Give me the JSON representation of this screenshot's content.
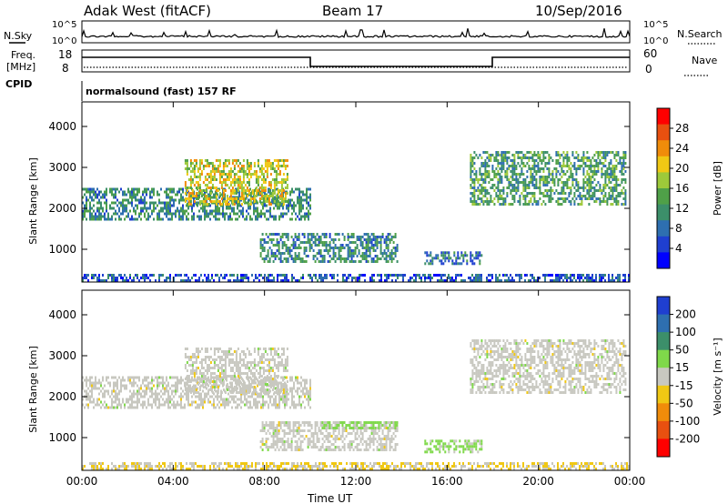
{
  "header": {
    "station": "Adak West (fitACF)",
    "beam": "Beam 17",
    "date": "10/Sep/2016"
  },
  "top_panels": {
    "nsky_label": "N.Sky",
    "nsky_ticks": [
      "10^5",
      "10^0"
    ],
    "nsearch_label": "N.Search",
    "nsearch_ticks": [
      "10^5",
      "10^0"
    ],
    "freq_label_1": "Freq.",
    "freq_label_2": "[MHz]",
    "freq_ticks": [
      "18",
      "8"
    ],
    "nave_label": "Nave",
    "nave_ticks": [
      "60",
      "0"
    ],
    "cpid_label": "CPID",
    "cpid_text": "normalsound (fast) 157 RF"
  },
  "colors": {
    "power_scale": [
      "#0000ff",
      "#1f3fd0",
      "#2e6fb0",
      "#3c8f6a",
      "#4fa048",
      "#9dc93a",
      "#f0c814",
      "#f08c0a",
      "#e85010",
      "#ff0000"
    ],
    "velocity_scale": [
      "#1f3fd0",
      "#2e6fb0",
      "#3c8f6a",
      "#7fd94a",
      "#c8c8c0",
      "#f0c814",
      "#f08c0a",
      "#e85010",
      "#ff0000"
    ]
  },
  "chart_data": [
    {
      "type": "heatmap",
      "title": "Power",
      "xlabel": "",
      "ylabel": "Slant Range [km]",
      "x_ticks": [
        "00:00",
        "04:00",
        "08:00",
        "12:00",
        "16:00",
        "20:00",
        "00:00"
      ],
      "xlim_hours": [
        0,
        24
      ],
      "y_ticks": [
        "1000",
        "2000",
        "3000",
        "4000"
      ],
      "ylim": [
        200,
        4600
      ],
      "colorbar_label": "Power [dB]",
      "colorbar_ticks": [
        "4",
        "8",
        "12",
        "16",
        "20",
        "24",
        "28"
      ],
      "clim": [
        0,
        30
      ],
      "regions": [
        {
          "x": [
            0.0,
            10.0
          ],
          "y": [
            1700,
            2500
          ],
          "value": 10
        },
        {
          "x": [
            4.5,
            9.0
          ],
          "y": [
            2100,
            3200
          ],
          "value": 18
        },
        {
          "x": [
            7.8,
            13.8
          ],
          "y": [
            700,
            1400
          ],
          "value": 10
        },
        {
          "x": [
            15.0,
            17.5
          ],
          "y": [
            650,
            950
          ],
          "value": 8
        },
        {
          "x": [
            17.0,
            23.8
          ],
          "y": [
            2100,
            3400
          ],
          "value": 12
        },
        {
          "x": [
            0.0,
            24.0
          ],
          "y": [
            250,
            400
          ],
          "value": 6
        }
      ]
    },
    {
      "type": "heatmap",
      "title": "Velocity",
      "xlabel": "Time UT",
      "ylabel": "Slant Range [km]",
      "x_ticks": [
        "00:00",
        "04:00",
        "08:00",
        "12:00",
        "16:00",
        "20:00",
        "00:00"
      ],
      "xlim_hours": [
        0,
        24
      ],
      "y_ticks": [
        "1000",
        "2000",
        "3000",
        "4000"
      ],
      "ylim": [
        200,
        4600
      ],
      "colorbar_label": "Velocity [m s⁻¹]",
      "colorbar_ticks": [
        "200",
        "100",
        "50",
        "15",
        "-15",
        "-50",
        "-100",
        "-200"
      ],
      "clim": [
        -250,
        250
      ],
      "regions": [
        {
          "x": [
            0.0,
            10.0
          ],
          "y": [
            1700,
            2500
          ],
          "value": 0
        },
        {
          "x": [
            4.5,
            9.0
          ],
          "y": [
            2100,
            3200
          ],
          "value": 0
        },
        {
          "x": [
            7.8,
            13.8
          ],
          "y": [
            700,
            1400
          ],
          "value": 0
        },
        {
          "x": [
            10.5,
            13.8
          ],
          "y": [
            1200,
            1400
          ],
          "value": 40
        },
        {
          "x": [
            15.0,
            17.5
          ],
          "y": [
            650,
            950
          ],
          "value": 40
        },
        {
          "x": [
            17.0,
            23.8
          ],
          "y": [
            2100,
            3400
          ],
          "value": 0
        },
        {
          "x": [
            0.0,
            24.0
          ],
          "y": [
            250,
            400
          ],
          "value": -30
        }
      ]
    }
  ]
}
